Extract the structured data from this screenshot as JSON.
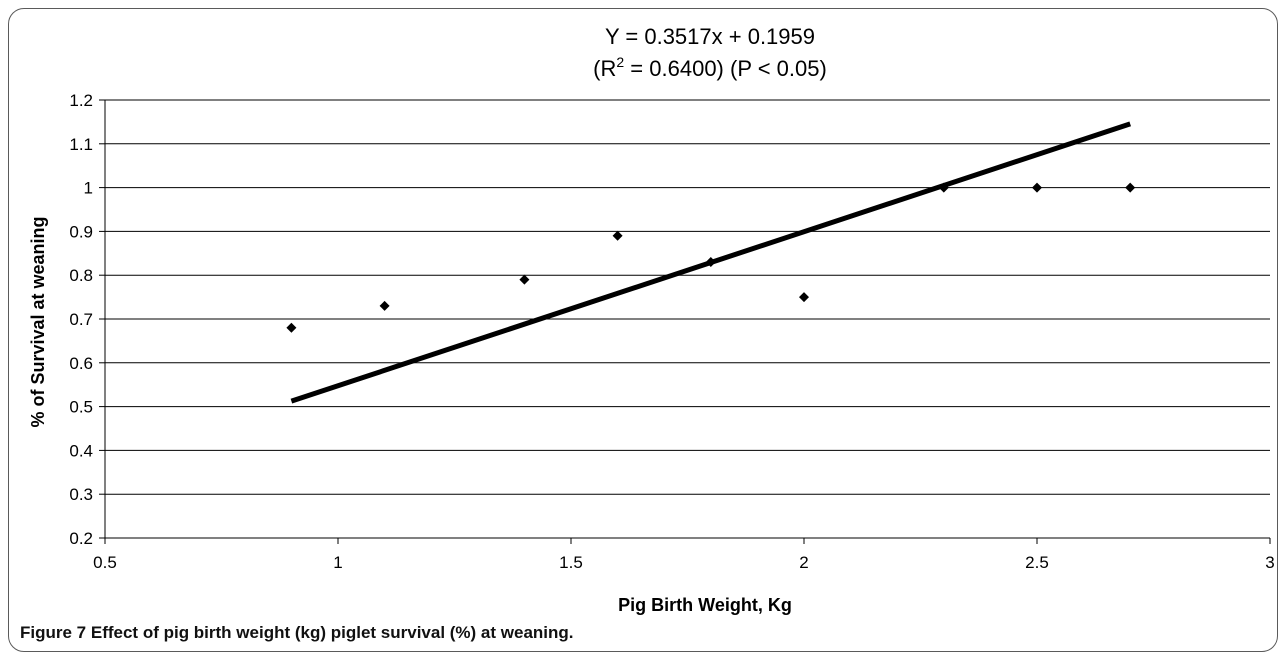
{
  "figure": {
    "label": "Figure 7",
    "caption": "Effect of pig birth weight (kg) piglet survival (%) at weaning."
  },
  "chart_data": {
    "type": "scatter",
    "title_line1": "Y = 0.3517x + 0.1959",
    "title_line2_prefix": "(R",
    "title_line2_sup": "2",
    "title_line2_suffix": " = 0.6400) (P < 0.05)",
    "xlabel": "Pig Birth Weight, Kg",
    "ylabel": "% of Survival at weaning",
    "xlim": [
      0.5,
      3
    ],
    "ylim": [
      0.2,
      1.2
    ],
    "x_ticks": [
      "0.5",
      "1",
      "1.5",
      "2",
      "2.5",
      "3"
    ],
    "y_ticks": [
      "0.2",
      "0.3",
      "0.4",
      "0.5",
      "0.6",
      "0.7",
      "0.8",
      "0.9",
      "1",
      "1.1",
      "1.2"
    ],
    "grid": "horizontal",
    "series": [
      {
        "points": [
          {
            "x": 0.9,
            "y": 0.68
          },
          {
            "x": 1.1,
            "y": 0.73
          },
          {
            "x": 1.4,
            "y": 0.79
          },
          {
            "x": 1.6,
            "y": 0.89
          },
          {
            "x": 1.8,
            "y": 0.83
          },
          {
            "x": 2.0,
            "y": 0.75
          },
          {
            "x": 2.3,
            "y": 1.0
          },
          {
            "x": 2.5,
            "y": 1.0
          },
          {
            "x": 2.7,
            "y": 1.0
          }
        ],
        "color": "#000000"
      }
    ],
    "trendline": {
      "slope": 0.3517,
      "intercept": 0.1959,
      "x_range": [
        0.9,
        2.7
      ],
      "color": "#000000"
    }
  }
}
